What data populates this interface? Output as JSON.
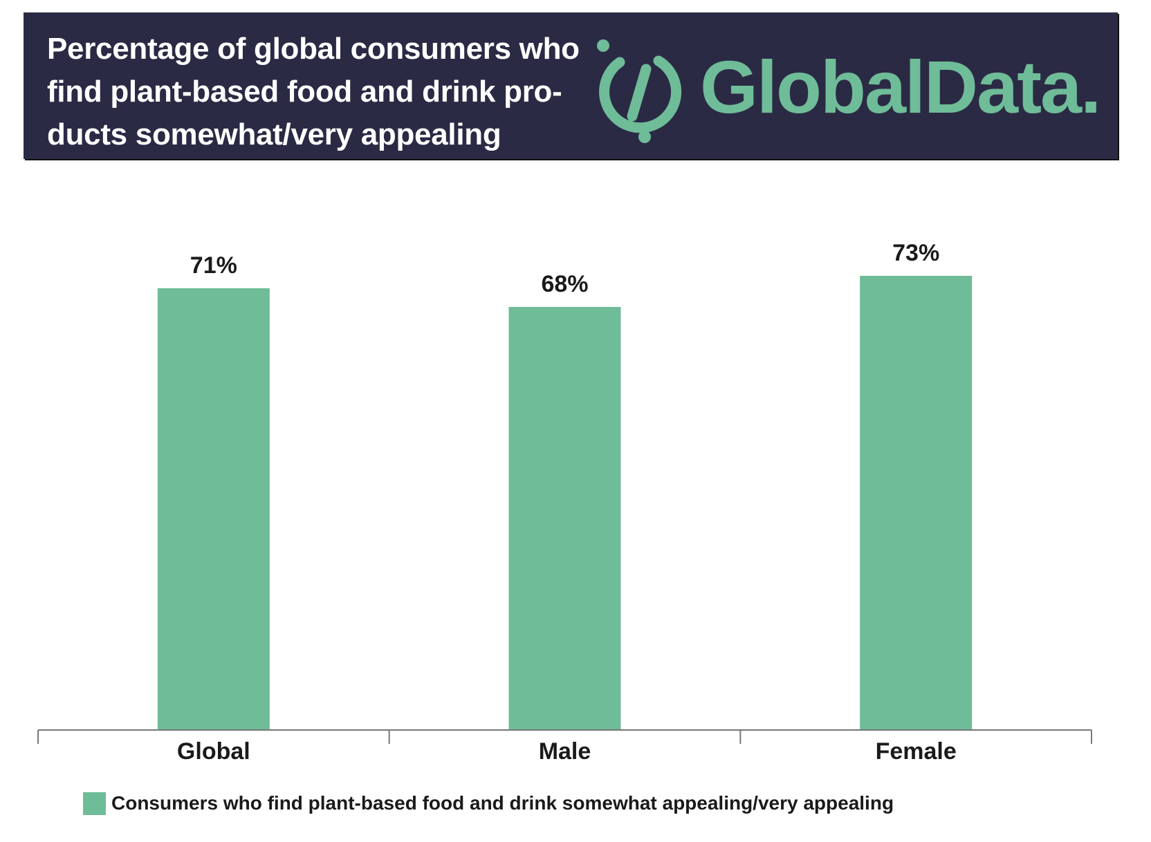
{
  "header": {
    "title": "Percentage of global consumers who find plant-based food and drink pro-ducts somewhat/very appealing",
    "brand": "GlobalData."
  },
  "colors": {
    "header_bg": "#2b2a45",
    "brand_green": "#6fbc98",
    "bar": "#6fbc98",
    "axis": "#777777"
  },
  "chart_data": {
    "type": "bar",
    "categories": [
      "Global",
      "Male",
      "Female"
    ],
    "series": [
      {
        "name": "Consumers who find plant-based food and drink somewhat appealing/very appealing",
        "values": [
          71,
          68,
          73
        ],
        "labels": [
          "71%",
          "68%",
          "73%"
        ]
      }
    ],
    "title": "Percentage of global consumers who find plant-based food and drink pro-ducts somewhat/very appealing",
    "xlabel": "",
    "ylabel": "",
    "ylim": [
      0,
      100
    ],
    "unit": "%",
    "grid": false,
    "legend_position": "bottom"
  },
  "legend": {
    "label": "Consumers who find plant-based food and drink somewhat appealing/very appealing"
  }
}
